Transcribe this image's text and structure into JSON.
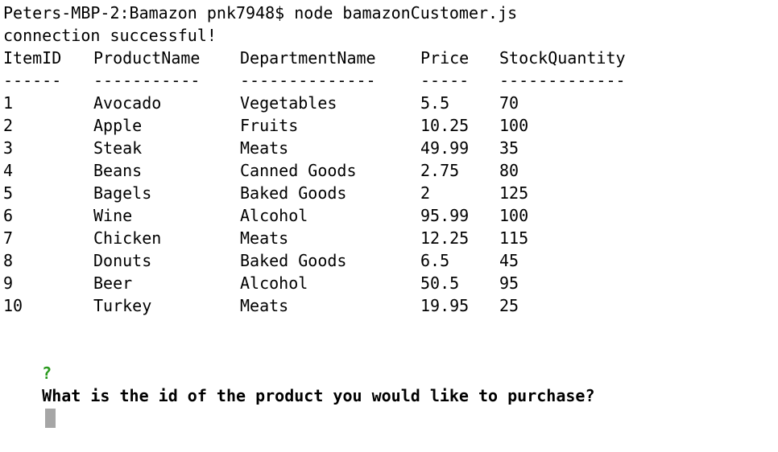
{
  "terminal": {
    "command_line": "Peters-MBP-2:Bamazon pnk7948$ node bamazonCustomer.js",
    "status_line": "connection successful!",
    "table": {
      "headers": [
        "ItemID",
        "ProductName",
        "DepartmentName",
        "Price",
        "StockQuantity"
      ],
      "separators": [
        "------",
        "-----------",
        "--------------",
        "-----",
        "-------------"
      ],
      "rows": [
        [
          "1",
          "Avocado",
          "Vegetables",
          "5.5",
          "70"
        ],
        [
          "2",
          "Apple",
          "Fruits",
          "10.25",
          "100"
        ],
        [
          "3",
          "Steak",
          "Meats",
          "49.99",
          "35"
        ],
        [
          "4",
          "Beans",
          "Canned Goods",
          "2.75",
          "80"
        ],
        [
          "5",
          "Bagels",
          "Baked Goods",
          "2",
          "125"
        ],
        [
          "6",
          "Wine",
          "Alcohol",
          "95.99",
          "100"
        ],
        [
          "7",
          "Chicken",
          "Meats",
          "12.25",
          "115"
        ],
        [
          "8",
          "Donuts",
          "Baked Goods",
          "6.5",
          "45"
        ],
        [
          "9",
          "Beer",
          "Alcohol",
          "50.5",
          "95"
        ],
        [
          "10",
          "Turkey",
          "Meats",
          "19.95",
          "25"
        ]
      ]
    },
    "prompt": {
      "marker": "?",
      "question": "What is the id of the product you would like to purchase?",
      "input_value": ""
    },
    "colors": {
      "background": "#ffffff",
      "text": "#000000",
      "prompt_marker": "#2a9a1e",
      "cursor": "#a6a6a6"
    }
  }
}
